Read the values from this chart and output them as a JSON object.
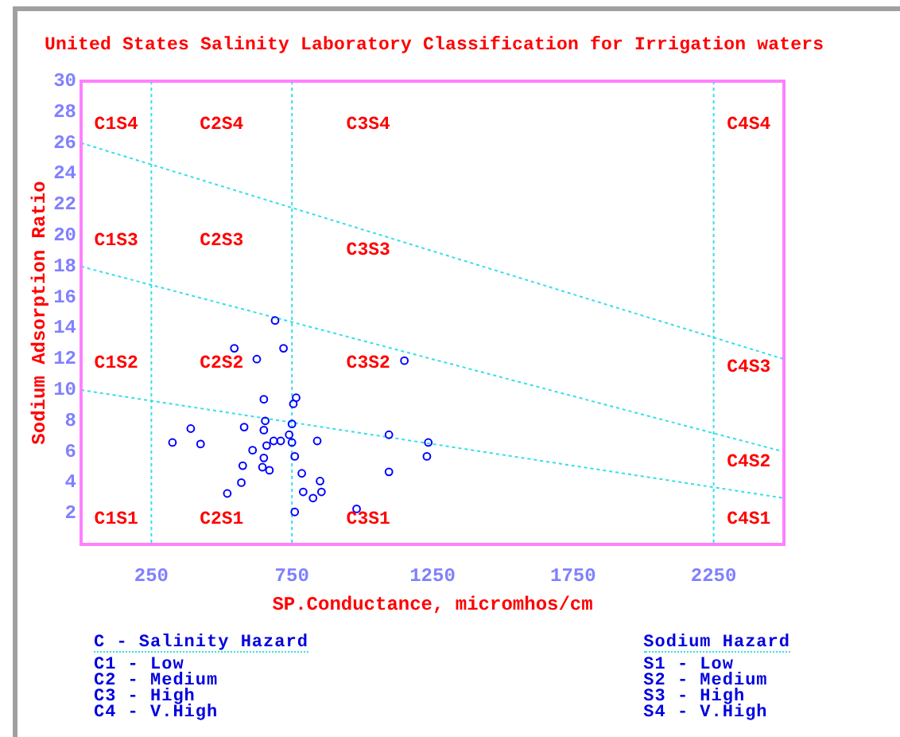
{
  "chart_data": {
    "type": "scatter",
    "title": "United States Salinity Laboratory Classification for Irrigation waters",
    "xlabel": "SP.Conductance, micromhos/cm",
    "ylabel": "Sodium Adsorption Ratio",
    "xlim": [
      0,
      2500
    ],
    "xticks": [
      250,
      750,
      1250,
      1750,
      2250
    ],
    "ylim": [
      0,
      30
    ],
    "yticks": [
      2,
      4,
      6,
      8,
      10,
      12,
      14,
      16,
      18,
      20,
      22,
      24,
      26,
      28,
      30
    ],
    "marker": "circle",
    "series": [
      {
        "color": "#0000ff",
        "x": [
          545,
          625,
          720,
          1150,
          650,
          765,
          755,
          655,
          750,
          390,
          580,
          650,
          740,
          325,
          425,
          660,
          685,
          710,
          750,
          840,
          1095,
          1235,
          610,
          650,
          760,
          1230,
          575,
          645,
          670,
          785,
          1095,
          850,
          570,
          520,
          790,
          855,
          825,
          980,
          760,
          690
        ],
        "values": [
          12.7,
          12.0,
          12.7,
          11.9,
          9.4,
          9.5,
          9.1,
          8.0,
          7.8,
          7.5,
          7.6,
          7.4,
          7.1,
          6.6,
          6.5,
          6.4,
          6.7,
          6.7,
          6.6,
          6.7,
          7.1,
          6.6,
          6.1,
          5.6,
          5.7,
          5.7,
          5.1,
          5.0,
          4.8,
          4.6,
          4.7,
          4.1,
          4.0,
          3.3,
          3.4,
          3.4,
          3.0,
          2.3,
          2.1,
          14.5
        ]
      },
      {
        "type": "line",
        "color": "#33e0e8",
        "x": [
          0,
          2500
        ],
        "values": [
          10,
          3
        ],
        "line_style": "dotted",
        "marker": "none"
      },
      {
        "type": "line",
        "color": "#33e0e8",
        "x": [
          0,
          2500
        ],
        "values": [
          18,
          6
        ],
        "line_style": "dotted",
        "marker": "none"
      },
      {
        "type": "line",
        "color": "#33e0e8",
        "x": [
          0,
          2500
        ],
        "values": [
          26,
          12
        ],
        "line_style": "dotted",
        "marker": "none"
      }
    ],
    "ref_lines": [
      {
        "axis": "x",
        "value": 250,
        "color": "#33e0e8",
        "line_style": "dotted"
      },
      {
        "axis": "x",
        "value": 750,
        "color": "#33e0e8",
        "line_style": "dotted"
      },
      {
        "axis": "x",
        "value": 2250,
        "color": "#33e0e8",
        "line_style": "dotted"
      }
    ],
    "annotations": [
      "C1S4",
      "C2S4",
      "C3S4",
      "C4S4",
      "C1S3",
      "C2S3",
      "C3S3",
      "C4S3",
      "C1S2",
      "C2S2",
      "C3S2",
      "C4S2",
      "C1S1",
      "C2S1",
      "C3S1",
      "C4S1",
      "C - Salinity Hazard\nC1 - Low\nC2 - Medium\nC3 - High\nC4 - V.High",
      "Sodium Hazard\nS1 - Low\nS2 - Medium\nS3 - High\nS4 - V.High"
    ]
  }
}
